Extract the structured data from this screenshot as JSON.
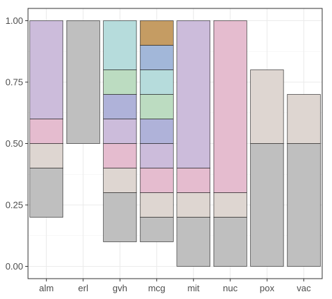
{
  "chart_data": {
    "type": "bar",
    "subtype": "floating-stacked-segments",
    "title": "",
    "xlabel": "",
    "ylabel": "",
    "ylim": [
      -0.05,
      1.05
    ],
    "grid": true,
    "legend": "none",
    "categories": [
      "alm",
      "erl",
      "gvh",
      "mcg",
      "mit",
      "nuc",
      "pox",
      "vac"
    ],
    "y_ticks": [
      0.0,
      0.25,
      0.5,
      0.75,
      1.0
    ],
    "y_tick_labels": [
      "0.00",
      "0.25",
      "0.50",
      "0.75",
      "1.00"
    ],
    "segments": [
      {
        "category": "alm",
        "y0": 0.2,
        "y1": 0.4,
        "color": "#bfbfbf"
      },
      {
        "category": "alm",
        "y0": 0.4,
        "y1": 0.5,
        "color": "#ded6d1"
      },
      {
        "category": "alm",
        "y0": 0.5,
        "y1": 0.6,
        "color": "#e5bccf"
      },
      {
        "category": "alm",
        "y0": 0.6,
        "y1": 1.0,
        "color": "#ccbcdb"
      },
      {
        "category": "erl",
        "y0": 0.5,
        "y1": 1.0,
        "color": "#bfbfbf"
      },
      {
        "category": "gvh",
        "y0": 0.1,
        "y1": 0.3,
        "color": "#bfbfbf"
      },
      {
        "category": "gvh",
        "y0": 0.3,
        "y1": 0.4,
        "color": "#ded6d1"
      },
      {
        "category": "gvh",
        "y0": 0.4,
        "y1": 0.5,
        "color": "#e5bccf"
      },
      {
        "category": "gvh",
        "y0": 0.5,
        "y1": 0.6,
        "color": "#ccbcdb"
      },
      {
        "category": "gvh",
        "y0": 0.6,
        "y1": 0.7,
        "color": "#afb2d9"
      },
      {
        "category": "gvh",
        "y0": 0.7,
        "y1": 0.8,
        "color": "#bcdcc1"
      },
      {
        "category": "gvh",
        "y0": 0.8,
        "y1": 1.0,
        "color": "#b6dcdc"
      },
      {
        "category": "mcg",
        "y0": 0.1,
        "y1": 0.2,
        "color": "#bfbfbf"
      },
      {
        "category": "mcg",
        "y0": 0.2,
        "y1": 0.3,
        "color": "#ded6d1"
      },
      {
        "category": "mcg",
        "y0": 0.3,
        "y1": 0.4,
        "color": "#e5bccf"
      },
      {
        "category": "mcg",
        "y0": 0.4,
        "y1": 0.5,
        "color": "#ccbcdb"
      },
      {
        "category": "mcg",
        "y0": 0.5,
        "y1": 0.6,
        "color": "#afb2d9"
      },
      {
        "category": "mcg",
        "y0": 0.6,
        "y1": 0.7,
        "color": "#bcdcc1"
      },
      {
        "category": "mcg",
        "y0": 0.7,
        "y1": 0.8,
        "color": "#b6dcdc"
      },
      {
        "category": "mcg",
        "y0": 0.8,
        "y1": 0.9,
        "color": "#a2b7d9"
      },
      {
        "category": "mcg",
        "y0": 0.9,
        "y1": 1.0,
        "color": "#c59c63"
      },
      {
        "category": "mit",
        "y0": 0.0,
        "y1": 0.2,
        "color": "#bfbfbf"
      },
      {
        "category": "mit",
        "y0": 0.2,
        "y1": 0.3,
        "color": "#ded6d1"
      },
      {
        "category": "mit",
        "y0": 0.3,
        "y1": 0.4,
        "color": "#e5bccf"
      },
      {
        "category": "mit",
        "y0": 0.4,
        "y1": 1.0,
        "color": "#ccbcdb"
      },
      {
        "category": "nuc",
        "y0": 0.0,
        "y1": 0.2,
        "color": "#bfbfbf"
      },
      {
        "category": "nuc",
        "y0": 0.2,
        "y1": 0.3,
        "color": "#ded6d1"
      },
      {
        "category": "nuc",
        "y0": 0.3,
        "y1": 1.0,
        "color": "#e5bccf"
      },
      {
        "category": "pox",
        "y0": 0.0,
        "y1": 0.5,
        "color": "#bfbfbf"
      },
      {
        "category": "pox",
        "y0": 0.5,
        "y1": 0.8,
        "color": "#ded6d1"
      },
      {
        "category": "vac",
        "y0": 0.0,
        "y1": 0.5,
        "color": "#bfbfbf"
      },
      {
        "category": "vac",
        "y0": 0.5,
        "y1": 0.7,
        "color": "#ded6d1"
      }
    ]
  }
}
